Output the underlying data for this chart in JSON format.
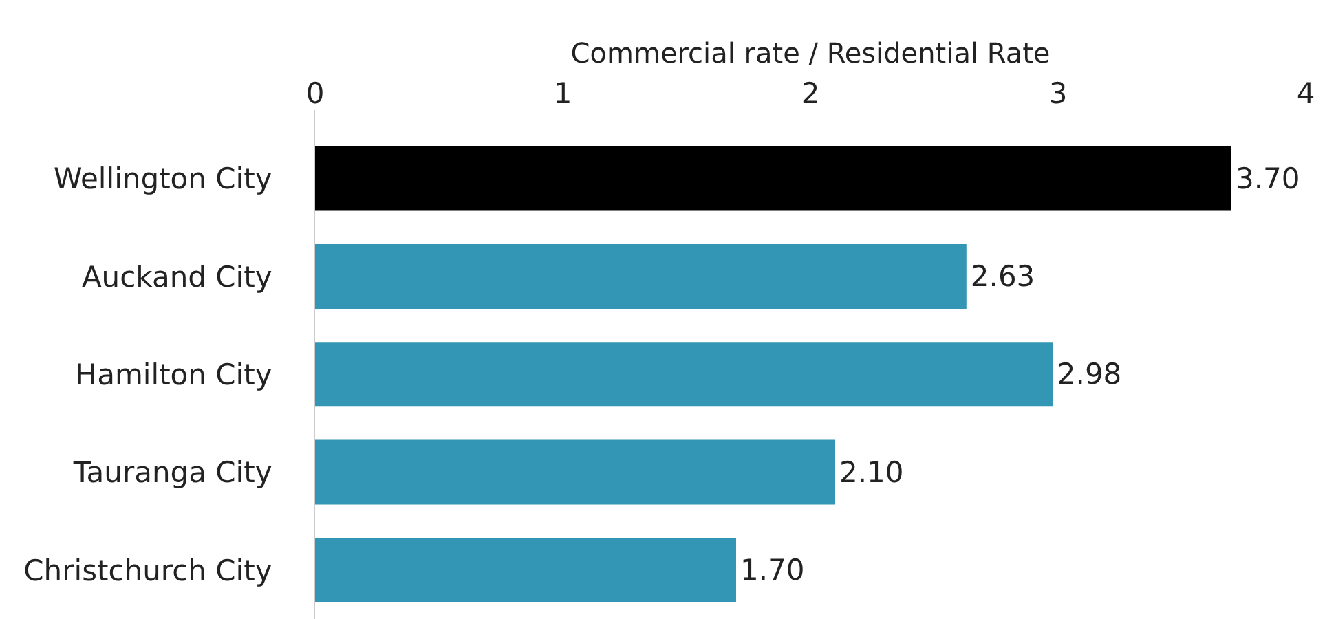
{
  "chart_data": {
    "type": "bar",
    "orientation": "horizontal",
    "xlabel": "Commercial rate / Residential Rate",
    "categories": [
      "Wellington City",
      "Auckand City",
      "Hamilton City",
      "Tauranga City",
      "Christchurch City"
    ],
    "values": [
      3.7,
      2.63,
      2.98,
      2.1,
      1.7
    ],
    "colors": [
      "#000000",
      "#3296b4",
      "#3296b4",
      "#3296b4",
      "#3296b4"
    ],
    "value_labels": [
      "3.70",
      "2.63",
      "2.98",
      "2.10",
      "1.70"
    ],
    "xlim": [
      0,
      4
    ],
    "xticks": [
      0,
      1,
      2,
      3,
      4
    ],
    "grid": false
  }
}
